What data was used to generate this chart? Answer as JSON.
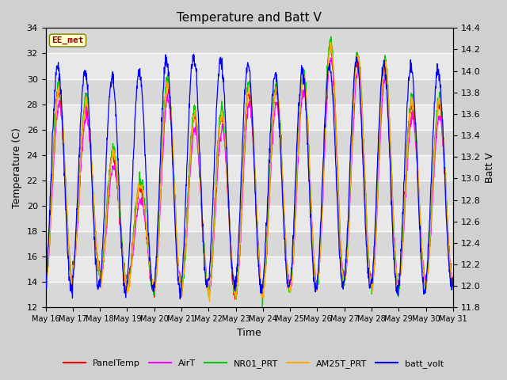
{
  "title": "Temperature and Batt V",
  "xlabel": "Time",
  "ylabel_left": "Temperature (C)",
  "ylabel_right": "Batt V",
  "annotation": "EE_met",
  "ylim_left": [
    12,
    34
  ],
  "ylim_right": [
    11.8,
    14.4
  ],
  "yticks_left": [
    12,
    14,
    16,
    18,
    20,
    22,
    24,
    26,
    28,
    30,
    32,
    34
  ],
  "yticks_right": [
    11.8,
    12.0,
    12.2,
    12.4,
    12.6,
    12.8,
    13.0,
    13.2,
    13.4,
    13.6,
    13.8,
    14.0,
    14.2,
    14.4
  ],
  "xtick_labels": [
    "May 16",
    "May 17",
    "May 18",
    "May 19",
    "May 20",
    "May 21",
    "May 22",
    "May 23",
    "May 24",
    "May 25",
    "May 26",
    "May 27",
    "May 28",
    "May 29",
    "May 30",
    "May 31"
  ],
  "fig_bg": "#d0d0d0",
  "plot_bg": "#e8e8e8",
  "grid_color": "#ffffff",
  "colors": {
    "PanelTemp": "#ff0000",
    "AirT": "#ff00ff",
    "NR01_PRT": "#00cc00",
    "AM25T_PRT": "#ffaa00",
    "batt_volt": "#0000ff"
  },
  "n_days": 15,
  "n_pts_per_day": 96
}
